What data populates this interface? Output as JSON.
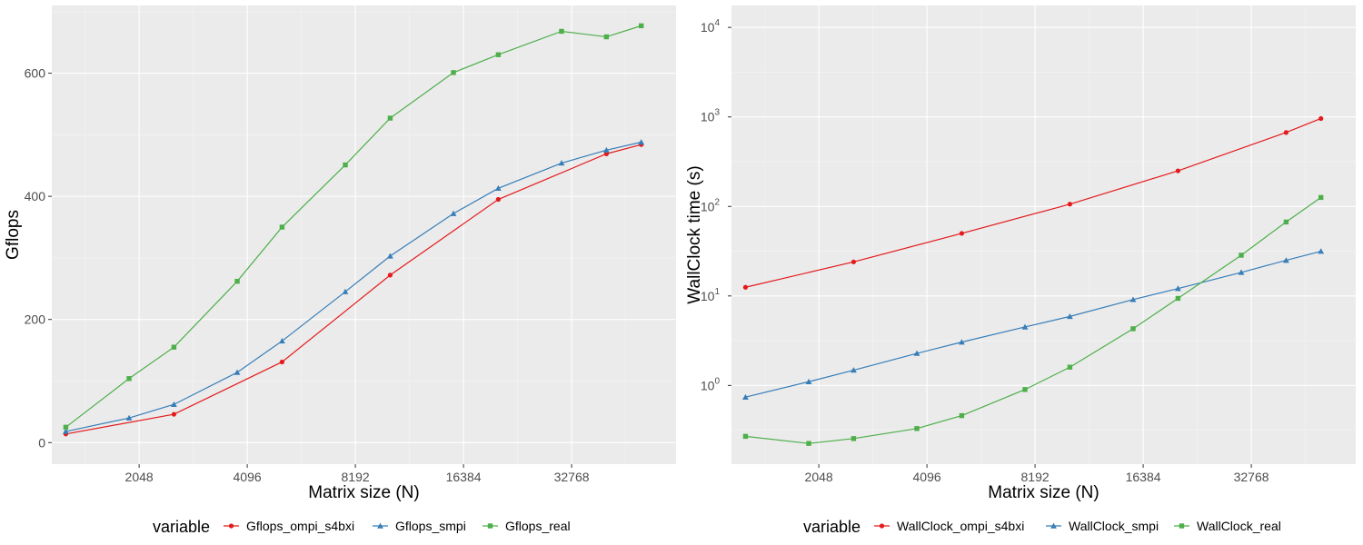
{
  "chart_data": [
    {
      "type": "line",
      "xlabel": "Matrix size (N)",
      "ylabel": "Gflops",
      "x_scale": "log2",
      "x_ticks": [
        2048,
        4096,
        8192,
        16384,
        32768
      ],
      "x_tick_labels": [
        "2048",
        "4096",
        "8192",
        "16384",
        "32768"
      ],
      "y_scale": "linear",
      "y_ticks": [
        0,
        200,
        400,
        600
      ],
      "y_tick_labels": [
        "0",
        "200",
        "400",
        "600"
      ],
      "xlim": [
        1170,
        64000
      ],
      "ylim": [
        -35,
        710
      ],
      "grid": true,
      "legend": {
        "title": "variable",
        "placement": "bottom"
      },
      "series": [
        {
          "name": "Gflops_ompi_s4bxi",
          "color": "#e41a1c",
          "marker": "circle",
          "x": [
            1280,
            2560,
            5120,
            10240,
            20480,
            40960,
            51200
          ],
          "y": [
            14,
            46,
            131,
            272,
            395,
            469,
            484
          ]
        },
        {
          "name": "Gflops_smpi",
          "color": "#377eb8",
          "marker": "triangle",
          "x": [
            1280,
            1920,
            2560,
            3840,
            5120,
            7680,
            10240,
            15360,
            20480,
            30720,
            40960,
            51200
          ],
          "y": [
            18,
            40,
            62,
            114,
            165,
            245,
            303,
            372,
            413,
            454,
            475,
            488
          ]
        },
        {
          "name": "Gflops_real",
          "color": "#4daf4a",
          "marker": "square",
          "x": [
            1280,
            1920,
            2560,
            3840,
            5120,
            7680,
            10240,
            15360,
            20480,
            30720,
            40960,
            51200
          ],
          "y": [
            25,
            104,
            155,
            262,
            350,
            451,
            527,
            601,
            630,
            668,
            659,
            677
          ]
        }
      ]
    },
    {
      "type": "line",
      "xlabel": "Matrix size (N)",
      "ylabel": "WallClock time (s)",
      "x_scale": "log2",
      "x_ticks": [
        2048,
        4096,
        8192,
        16384,
        32768
      ],
      "x_tick_labels": [
        "2048",
        "4096",
        "8192",
        "16384",
        "32768"
      ],
      "y_scale": "log10",
      "y_ticks": [
        1,
        10,
        100,
        1000,
        10000
      ],
      "y_tick_labels": [
        [
          "10",
          "0"
        ],
        [
          "10",
          "1"
        ],
        [
          "10",
          "2"
        ],
        [
          "10",
          "3"
        ],
        [
          "10",
          "4"
        ]
      ],
      "xlim": [
        1170,
        64000
      ],
      "ylim": [
        0.132,
        17600
      ],
      "grid": true,
      "legend": {
        "title": "variable",
        "placement": "bottom"
      },
      "series": [
        {
          "name": "WallClock_ompi_s4bxi",
          "color": "#e41a1c",
          "marker": "circle",
          "x": [
            1280,
            2560,
            5120,
            10240,
            20480,
            40960,
            51200
          ],
          "y": [
            12.5,
            24,
            50,
            106,
            250,
            670,
            960
          ]
        },
        {
          "name": "WallClock_smpi",
          "color": "#377eb8",
          "marker": "triangle",
          "x": [
            1280,
            1920,
            2560,
            3840,
            5120,
            7680,
            10240,
            15360,
            20480,
            30720,
            40960,
            51200
          ],
          "y": [
            0.74,
            1.1,
            1.48,
            2.28,
            3.05,
            4.5,
            5.9,
            9.1,
            12.1,
            18.3,
            25,
            31.5
          ]
        },
        {
          "name": "WallClock_real",
          "color": "#4daf4a",
          "marker": "square",
          "x": [
            1280,
            1920,
            2560,
            3840,
            5120,
            7680,
            10240,
            15360,
            20480,
            30720,
            40960,
            51200
          ],
          "y": [
            0.27,
            0.225,
            0.255,
            0.33,
            0.46,
            0.9,
            1.6,
            4.3,
            9.4,
            28.5,
            67,
            126
          ]
        }
      ]
    }
  ]
}
